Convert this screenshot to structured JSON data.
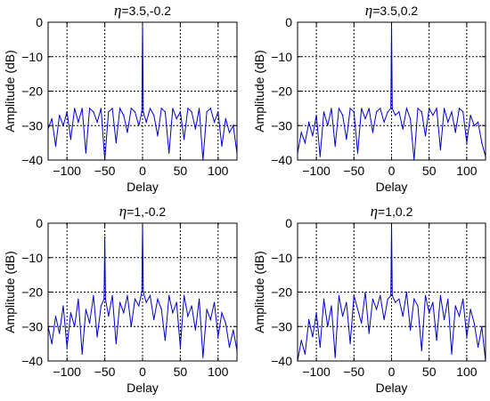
{
  "chart_data": [
    {
      "type": "line",
      "title_symbol": "η",
      "title_values": "=3.5,-0.2",
      "xlabel": "Delay",
      "ylabel": "Amplitude (dB)",
      "xlim": [
        -125,
        125
      ],
      "ylim": [
        -40,
        0
      ],
      "xticks": [
        -100,
        -50,
        0,
        50,
        100
      ],
      "yticks": [
        0,
        -10,
        -20,
        -30,
        -40
      ],
      "grid": true,
      "color": "#0000cc",
      "peak": {
        "x": 0,
        "y": 0
      },
      "series": [
        {
          "x": [
            -125,
            -120,
            -115,
            -110,
            -105,
            -100,
            -95,
            -90,
            -85,
            -80,
            -75,
            -70,
            -65,
            -60,
            -55,
            -50,
            -45,
            -40,
            -35,
            -30,
            -25,
            -20,
            -15,
            -10,
            -5,
            -1,
            0,
            1,
            5,
            10,
            15,
            20,
            25,
            30,
            35,
            40,
            45,
            50,
            55,
            60,
            65,
            70,
            75,
            80,
            85,
            90,
            95,
            100,
            105,
            110,
            115,
            120,
            125
          ],
          "y": [
            -31,
            -28,
            -36,
            -27,
            -30,
            -26,
            -34,
            -25,
            -29,
            -25,
            -38,
            -25,
            -26,
            -29,
            -25,
            -40,
            -26,
            -25,
            -35,
            -25,
            -27,
            -32,
            -25,
            -26,
            -30,
            -26,
            0,
            -26,
            -29,
            -25,
            -27,
            -33,
            -25,
            -26,
            -38,
            -25,
            -28,
            -26,
            -34,
            -25,
            -26,
            -31,
            -25,
            -40,
            -26,
            -25,
            -29,
            -26,
            -36,
            -28,
            -32,
            -30,
            -38
          ]
        }
      ]
    },
    {
      "type": "line",
      "title_symbol": "η",
      "title_values": "=3.5,0.2",
      "xlabel": "Delay",
      "ylabel": "Amplitude (dB)",
      "xlim": [
        -125,
        125
      ],
      "ylim": [
        -40,
        0
      ],
      "xticks": [
        -100,
        -50,
        0,
        50,
        100
      ],
      "yticks": [
        0,
        -10,
        -20,
        -30,
        -40
      ],
      "grid": true,
      "color": "#0000cc",
      "peak": {
        "x": 0,
        "y": 0
      },
      "series": [
        {
          "x": [
            -125,
            -120,
            -115,
            -110,
            -105,
            -100,
            -95,
            -90,
            -85,
            -80,
            -75,
            -70,
            -65,
            -60,
            -55,
            -50,
            -45,
            -40,
            -35,
            -30,
            -25,
            -20,
            -15,
            -10,
            -5,
            -1,
            0,
            1,
            5,
            10,
            15,
            20,
            25,
            30,
            35,
            40,
            45,
            50,
            55,
            60,
            65,
            70,
            75,
            80,
            85,
            90,
            95,
            100,
            105,
            110,
            115,
            120,
            125
          ],
          "y": [
            -38,
            -32,
            -35,
            -29,
            -33,
            -27,
            -39,
            -26,
            -30,
            -25,
            -36,
            -25,
            -27,
            -34,
            -25,
            -26,
            -38,
            -25,
            -28,
            -25,
            -32,
            -26,
            -25,
            -29,
            -26,
            -25,
            0,
            -25,
            -27,
            -26,
            -31,
            -25,
            -28,
            -40,
            -25,
            -26,
            -33,
            -25,
            -27,
            -25,
            -37,
            -25,
            -29,
            -26,
            -32,
            -25,
            -26,
            -35,
            -27,
            -30,
            -29,
            -35,
            -39
          ]
        }
      ]
    },
    {
      "type": "line",
      "title_symbol": "η",
      "title_values": "=1,-0.2",
      "xlabel": "Delay",
      "ylabel": "Amplitude (dB)",
      "xlim": [
        -125,
        125
      ],
      "ylim": [
        -40,
        0
      ],
      "xticks": [
        -100,
        -50,
        0,
        50,
        100
      ],
      "yticks": [
        0,
        -10,
        -20,
        -30,
        -40
      ],
      "grid": true,
      "color": "#0000cc",
      "peak": {
        "x": 0,
        "y": 0
      },
      "series": [
        {
          "x": [
            -125,
            -120,
            -115,
            -110,
            -105,
            -100,
            -95,
            -90,
            -85,
            -80,
            -75,
            -70,
            -65,
            -60,
            -55,
            -51,
            -50,
            -49,
            -45,
            -40,
            -35,
            -30,
            -25,
            -20,
            -15,
            -10,
            -5,
            -1,
            0,
            1,
            5,
            10,
            15,
            20,
            25,
            30,
            35,
            40,
            45,
            50,
            55,
            60,
            65,
            70,
            75,
            80,
            85,
            90,
            95,
            100,
            105,
            110,
            115,
            120,
            125
          ],
          "y": [
            -30,
            -35,
            -27,
            -32,
            -24,
            -36,
            -26,
            -30,
            -22,
            -38,
            -25,
            -29,
            -21,
            -33,
            -24,
            -22,
            -4,
            -22,
            -27,
            -21,
            -35,
            -23,
            -26,
            -21,
            -30,
            -22,
            -24,
            -20,
            0,
            -20,
            -23,
            -21,
            -28,
            -22,
            -25,
            -34,
            -21,
            -26,
            -23,
            -36,
            -21,
            -27,
            -24,
            -31,
            -22,
            -39,
            -25,
            -28,
            -23,
            -33,
            -26,
            -29,
            -36,
            -31,
            -37
          ]
        }
      ]
    },
    {
      "type": "line",
      "title_symbol": "η",
      "title_values": "=1,0.2",
      "xlabel": "Delay",
      "ylabel": "Amplitude (dB)",
      "xlim": [
        -125,
        125
      ],
      "ylim": [
        -40,
        0
      ],
      "xticks": [
        -100,
        -50,
        0,
        50,
        100
      ],
      "yticks": [
        0,
        -10,
        -20,
        -30,
        -40
      ],
      "grid": true,
      "color": "#0000cc",
      "peak": {
        "x": 0,
        "y": 0
      },
      "series": [
        {
          "x": [
            -125,
            -120,
            -115,
            -110,
            -105,
            -100,
            -95,
            -90,
            -85,
            -80,
            -75,
            -70,
            -65,
            -60,
            -55,
            -50,
            -45,
            -40,
            -35,
            -30,
            -25,
            -20,
            -15,
            -10,
            -5,
            -1,
            0,
            1,
            5,
            10,
            15,
            20,
            25,
            30,
            35,
            40,
            45,
            50,
            55,
            60,
            65,
            70,
            75,
            80,
            85,
            90,
            95,
            100,
            105,
            110,
            115,
            120,
            125
          ],
          "y": [
            -40,
            -34,
            -38,
            -28,
            -33,
            -26,
            -36,
            -22,
            -30,
            -24,
            -39,
            -21,
            -27,
            -23,
            -35,
            -21,
            -25,
            -29,
            -20,
            -32,
            -22,
            -25,
            -21,
            -28,
            -22,
            -21,
            0,
            -21,
            -23,
            -22,
            -27,
            -20,
            -31,
            -22,
            -24,
            -37,
            -21,
            -26,
            -23,
            -34,
            -21,
            -28,
            -22,
            -38,
            -24,
            -27,
            -22,
            -33,
            -25,
            -29,
            -36,
            -30,
            -40
          ]
        }
      ]
    }
  ]
}
